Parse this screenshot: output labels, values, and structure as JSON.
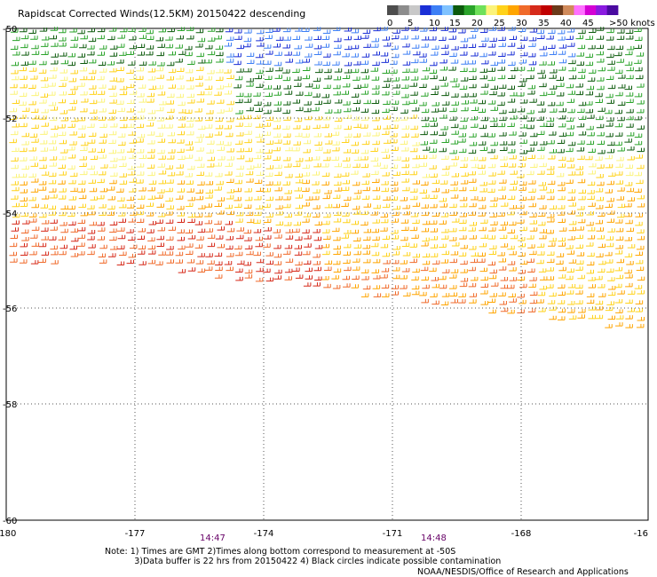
{
  "title": "Rapidscat Corrected Winds(12.5KM) 20150422 descending",
  "legend": {
    "colors": [
      "#4d4d4d",
      "#8c8c8c",
      "#c8c8c8",
      "#1a2fd6",
      "#3d7ff5",
      "#7fc2ff",
      "#0c5a0c",
      "#2aa32a",
      "#6ee05a",
      "#fbf37a",
      "#ffd21a",
      "#ffa500",
      "#f06a2a",
      "#d62a1a",
      "#c00000",
      "#6b3a1a",
      "#d08a5a",
      "#ff70ff",
      "#d400d4",
      "#8a1ae0",
      "#4a0aa0"
    ],
    "labels": [
      "0",
      "5",
      "10",
      "15",
      "20",
      "25",
      "30",
      "35",
      "40",
      "45",
      ">50 knots"
    ]
  },
  "axes": {
    "x_ticks": [
      "-180",
      "-177",
      "-174",
      "-171",
      "-168",
      "-16"
    ],
    "y_ticks": [
      "-50",
      "-52",
      "-54",
      "-56",
      "-58",
      "-60"
    ]
  },
  "times": [
    "14:47",
    "14:48"
  ],
  "notes": "Note: 1) Times are GMT 2)Times along bottom correspond to measurement at -50S\n           3)Data buffer is 22 hrs from 20150422 4) Black circles indicate possible contamination",
  "credit": "NOAA/NESDIS/Office of Research and Applications"
}
